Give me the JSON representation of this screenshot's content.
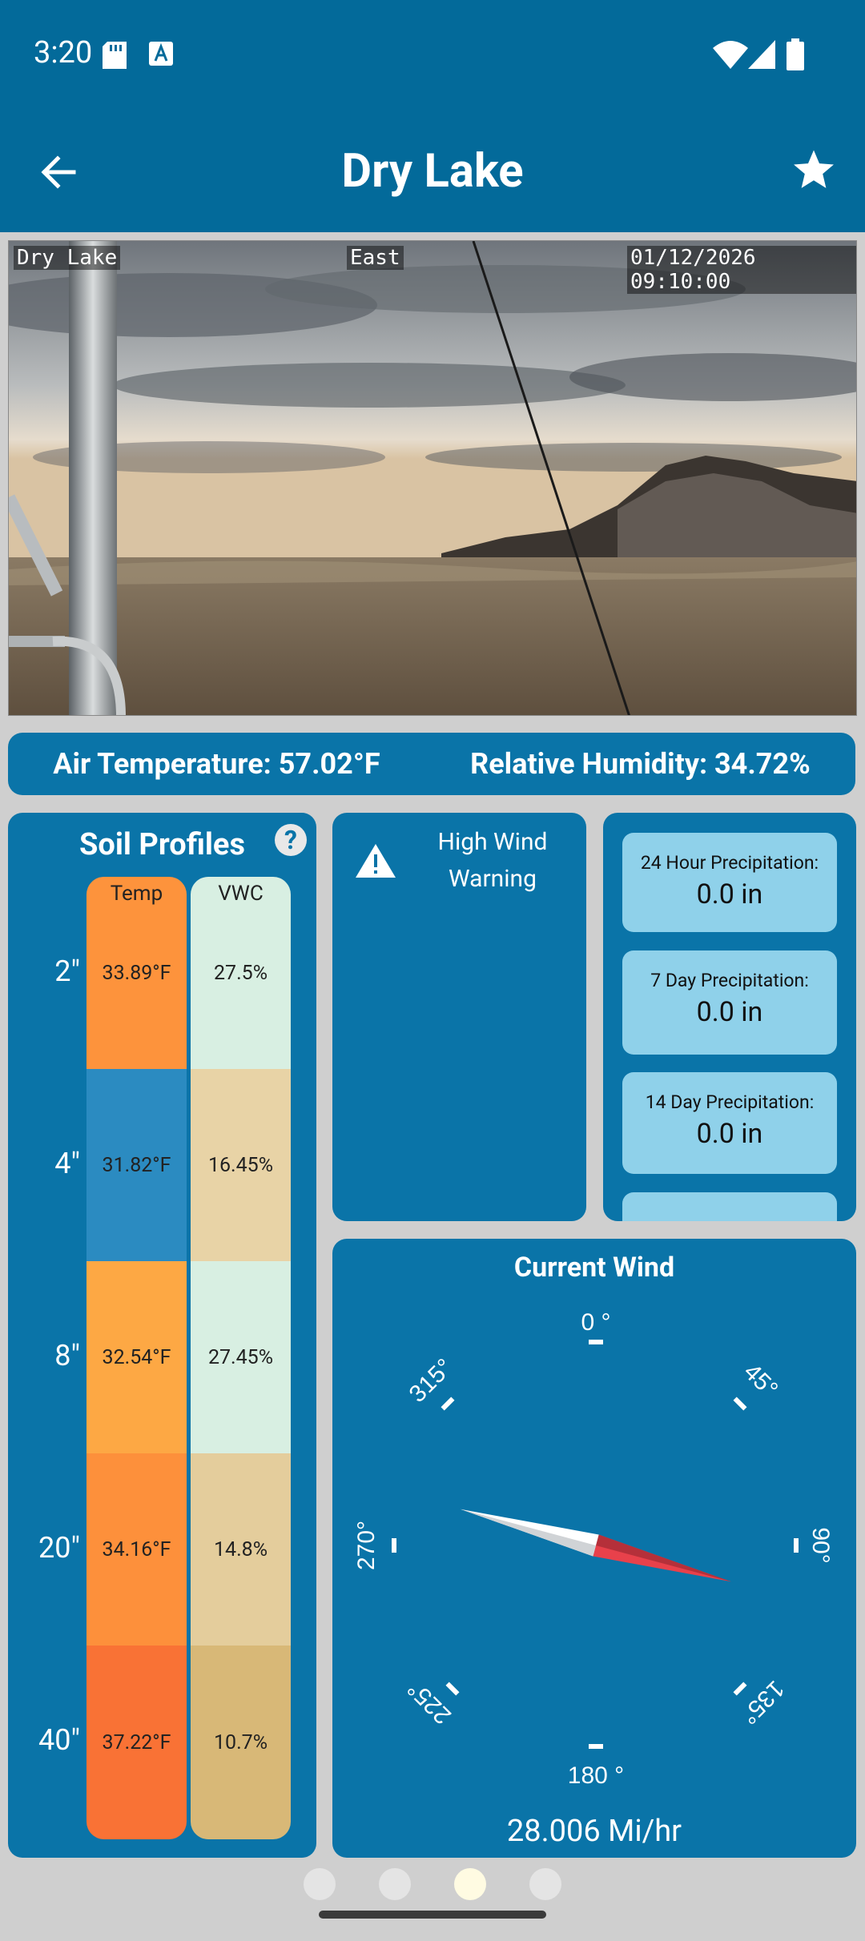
{
  "status_bar": {
    "time": "3:20"
  },
  "app_bar": {
    "title": "Dry Lake"
  },
  "camera": {
    "station_label": "Dry Lake",
    "direction_label": "East",
    "timestamp": "01/12/2026 09:10:00"
  },
  "climate": {
    "air_temperature": "Air Temperature: 57.02°F",
    "relative_humidity": "Relative Humidity: 34.72%"
  },
  "soil": {
    "title": "Soil Profiles",
    "help_label": "?",
    "temp_header": "Temp",
    "vwc_header": "VWC",
    "rows": [
      {
        "depth": "2\"",
        "temp": "33.89°F",
        "vwc": "27.5%",
        "temp_color": "#fd933c",
        "vwc_color": "#d8efe2"
      },
      {
        "depth": "4\"",
        "temp": "31.82°F",
        "vwc": "16.45%",
        "temp_color": "#2b8bc1",
        "vwc_color": "#e8d3a6"
      },
      {
        "depth": "8\"",
        "temp": "32.54°F",
        "vwc": "27.45%",
        "temp_color": "#fda844",
        "vwc_color": "#d8efe2"
      },
      {
        "depth": "20\"",
        "temp": "34.16°F",
        "vwc": "14.8%",
        "temp_color": "#fd903b",
        "vwc_color": "#e4cd9c"
      },
      {
        "depth": "40\"",
        "temp": "37.22°F",
        "vwc": "10.7%",
        "temp_color": "#f97235",
        "vwc_color": "#d8b877"
      }
    ]
  },
  "warning": {
    "text_line1": "High Wind",
    "text_line2": "Warning"
  },
  "precipitation": [
    {
      "label": "24 Hour Precipitation:",
      "value": "0.0 in"
    },
    {
      "label": "7 Day Precipitation:",
      "value": "0.0 in"
    },
    {
      "label": "14 Day Precipitation:",
      "value": "0.0 in"
    }
  ],
  "wind": {
    "title": "Current Wind",
    "speed": "28.006 Mi/hr",
    "direction_degrees": 105,
    "compass_labels": {
      "n": "0 °",
      "ne": "45°",
      "e": "90°",
      "se": "135°",
      "s": "180 °",
      "sw": "225°",
      "w": "270°",
      "nw": "315°"
    }
  },
  "pager": {
    "count": 4,
    "active_index": 2
  }
}
